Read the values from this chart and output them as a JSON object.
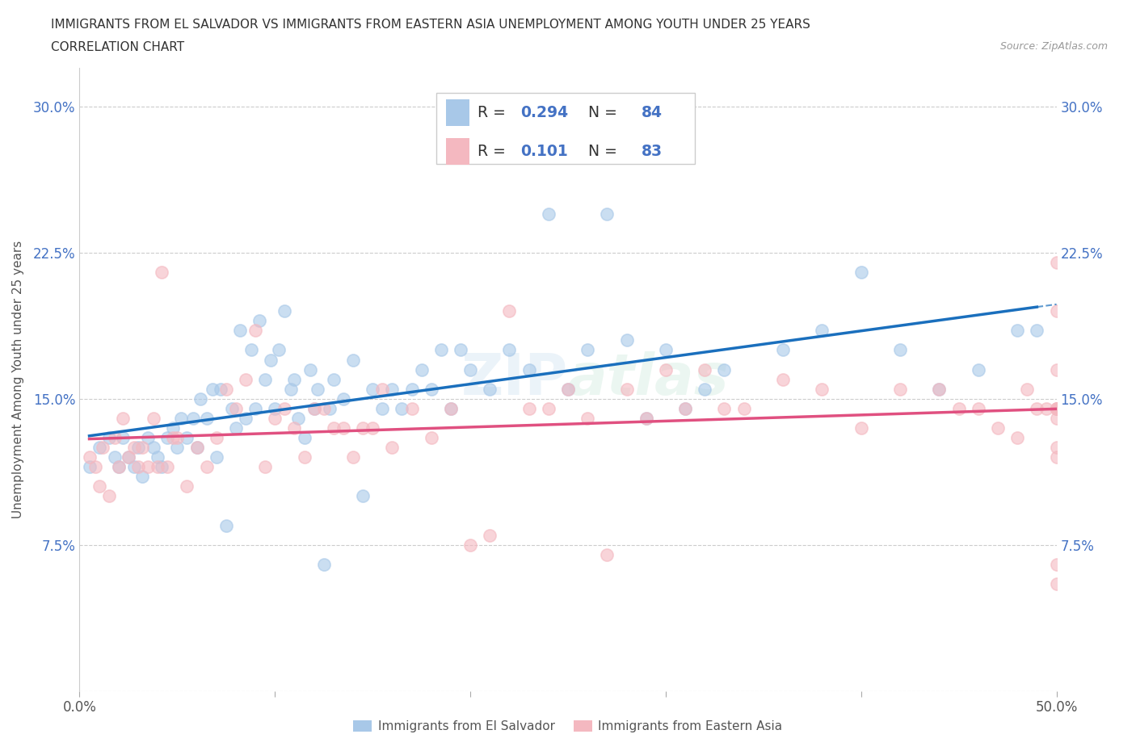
{
  "title_line1": "IMMIGRANTS FROM EL SALVADOR VS IMMIGRANTS FROM EASTERN ASIA UNEMPLOYMENT AMONG YOUTH UNDER 25 YEARS",
  "title_line2": "CORRELATION CHART",
  "source_text": "Source: ZipAtlas.com",
  "ylabel": "Unemployment Among Youth under 25 years",
  "xlim": [
    0.0,
    0.5
  ],
  "ylim": [
    0.0,
    0.32
  ],
  "xticks": [
    0.0,
    0.1,
    0.2,
    0.3,
    0.4,
    0.5
  ],
  "xticklabels": [
    "0.0%",
    "",
    "",
    "",
    "",
    "50.0%"
  ],
  "yticks": [
    0.0,
    0.075,
    0.15,
    0.225,
    0.3
  ],
  "yticklabels": [
    "",
    "7.5%",
    "15.0%",
    "22.5%",
    "30.0%"
  ],
  "R_salvador": 0.294,
  "N_salvador": 84,
  "R_eastern": 0.101,
  "N_eastern": 83,
  "color_salvador": "#a8c8e8",
  "color_eastern": "#f4b8c0",
  "color_trendline_salvador": "#1a6fbd",
  "color_trendline_eastern": "#e05080",
  "legend_labels": [
    "Immigrants from El Salvador",
    "Immigrants from Eastern Asia"
  ],
  "watermark": "ZIPatlas",
  "grid_color": "#cccccc",
  "salvador_x": [
    0.005,
    0.01,
    0.015,
    0.018,
    0.02,
    0.022,
    0.025,
    0.028,
    0.03,
    0.032,
    0.035,
    0.038,
    0.04,
    0.042,
    0.045,
    0.048,
    0.05,
    0.052,
    0.055,
    0.058,
    0.06,
    0.062,
    0.065,
    0.068,
    0.07,
    0.072,
    0.075,
    0.078,
    0.08,
    0.082,
    0.085,
    0.088,
    0.09,
    0.092,
    0.095,
    0.098,
    0.1,
    0.102,
    0.105,
    0.108,
    0.11,
    0.112,
    0.115,
    0.118,
    0.12,
    0.122,
    0.125,
    0.128,
    0.13,
    0.135,
    0.14,
    0.145,
    0.15,
    0.155,
    0.16,
    0.165,
    0.17,
    0.175,
    0.18,
    0.185,
    0.19,
    0.195,
    0.2,
    0.21,
    0.22,
    0.23,
    0.24,
    0.25,
    0.26,
    0.27,
    0.28,
    0.29,
    0.3,
    0.31,
    0.32,
    0.33,
    0.36,
    0.38,
    0.4,
    0.42,
    0.44,
    0.46,
    0.48,
    0.49
  ],
  "salvador_y": [
    0.115,
    0.125,
    0.13,
    0.12,
    0.115,
    0.13,
    0.12,
    0.115,
    0.125,
    0.11,
    0.13,
    0.125,
    0.12,
    0.115,
    0.13,
    0.135,
    0.125,
    0.14,
    0.13,
    0.14,
    0.125,
    0.15,
    0.14,
    0.155,
    0.12,
    0.155,
    0.085,
    0.145,
    0.135,
    0.185,
    0.14,
    0.175,
    0.145,
    0.19,
    0.16,
    0.17,
    0.145,
    0.175,
    0.195,
    0.155,
    0.16,
    0.14,
    0.13,
    0.165,
    0.145,
    0.155,
    0.065,
    0.145,
    0.16,
    0.15,
    0.17,
    0.1,
    0.155,
    0.145,
    0.155,
    0.145,
    0.155,
    0.165,
    0.155,
    0.175,
    0.145,
    0.175,
    0.165,
    0.155,
    0.175,
    0.165,
    0.245,
    0.155,
    0.175,
    0.245,
    0.18,
    0.14,
    0.175,
    0.145,
    0.155,
    0.165,
    0.175,
    0.185,
    0.215,
    0.175,
    0.155,
    0.165,
    0.185,
    0.185
  ],
  "eastern_x": [
    0.005,
    0.008,
    0.01,
    0.012,
    0.015,
    0.018,
    0.02,
    0.022,
    0.025,
    0.028,
    0.03,
    0.032,
    0.035,
    0.038,
    0.04,
    0.042,
    0.045,
    0.048,
    0.05,
    0.055,
    0.06,
    0.065,
    0.07,
    0.075,
    0.08,
    0.085,
    0.09,
    0.095,
    0.1,
    0.105,
    0.11,
    0.115,
    0.12,
    0.125,
    0.13,
    0.135,
    0.14,
    0.145,
    0.15,
    0.155,
    0.16,
    0.17,
    0.18,
    0.19,
    0.2,
    0.21,
    0.22,
    0.23,
    0.24,
    0.25,
    0.26,
    0.27,
    0.28,
    0.29,
    0.3,
    0.31,
    0.32,
    0.33,
    0.34,
    0.36,
    0.38,
    0.4,
    0.42,
    0.44,
    0.45,
    0.46,
    0.47,
    0.48,
    0.485,
    0.49,
    0.495,
    0.5,
    0.5,
    0.5,
    0.5,
    0.5,
    0.5,
    0.5,
    0.5,
    0.5,
    0.5,
    0.5,
    0.5
  ],
  "eastern_y": [
    0.12,
    0.115,
    0.105,
    0.125,
    0.1,
    0.13,
    0.115,
    0.14,
    0.12,
    0.125,
    0.115,
    0.125,
    0.115,
    0.14,
    0.115,
    0.215,
    0.115,
    0.13,
    0.13,
    0.105,
    0.125,
    0.115,
    0.13,
    0.155,
    0.145,
    0.16,
    0.185,
    0.115,
    0.14,
    0.145,
    0.135,
    0.12,
    0.145,
    0.145,
    0.135,
    0.135,
    0.12,
    0.135,
    0.135,
    0.155,
    0.125,
    0.145,
    0.13,
    0.145,
    0.075,
    0.08,
    0.195,
    0.145,
    0.145,
    0.155,
    0.14,
    0.07,
    0.155,
    0.14,
    0.165,
    0.145,
    0.165,
    0.145,
    0.145,
    0.16,
    0.155,
    0.135,
    0.155,
    0.155,
    0.145,
    0.145,
    0.135,
    0.13,
    0.155,
    0.145,
    0.145,
    0.145,
    0.165,
    0.145,
    0.14,
    0.055,
    0.125,
    0.145,
    0.22,
    0.12,
    0.195,
    0.145,
    0.065
  ]
}
